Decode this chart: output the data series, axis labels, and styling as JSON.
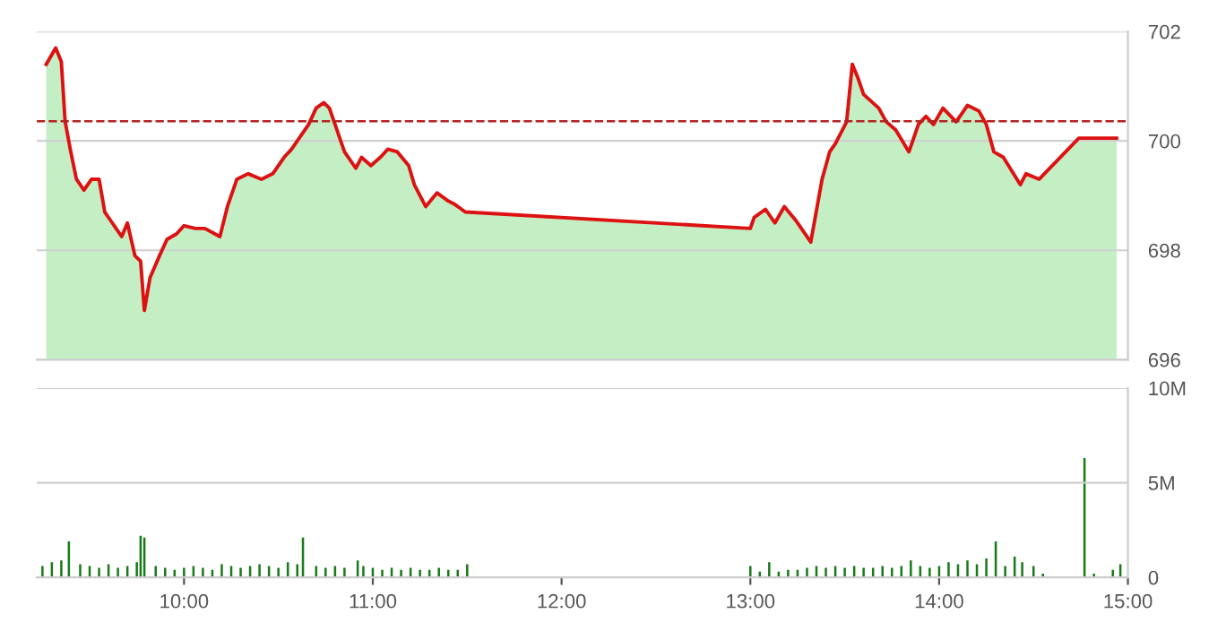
{
  "chart_data": [
    {
      "type": "area",
      "xlim": [
        9.22,
        15.0
      ],
      "ylim": [
        696,
        702
      ],
      "yticks": [
        696,
        698,
        700,
        702
      ],
      "grid": "y",
      "tick_labels": "y",
      "ref_lines": [
        {
          "axis": "y",
          "value": 700.36,
          "color": "#b22222",
          "line_style": "dashed"
        }
      ],
      "series": [
        {
          "color": "#c4eec4",
          "x": [
            9.27,
            9.32,
            9.35,
            9.37,
            9.4,
            9.43,
            9.47,
            9.51,
            9.55,
            9.58,
            9.62,
            9.67,
            9.7,
            9.74,
            9.77,
            9.79,
            9.82,
            9.87,
            9.91,
            9.96,
            10.0,
            10.06,
            10.11,
            10.19,
            10.23,
            10.28,
            10.34,
            10.41,
            10.47,
            10.53,
            10.57,
            10.61,
            10.66,
            10.7,
            10.74,
            10.77,
            10.8,
            10.85,
            10.91,
            10.94,
            10.99,
            11.04,
            11.08,
            11.13,
            11.19,
            11.22,
            11.28,
            11.34,
            11.4,
            11.43,
            11.49,
            13.0,
            13.02,
            13.08,
            13.13,
            13.18,
            13.24,
            13.32,
            13.38,
            13.42,
            13.45,
            13.51,
            13.54,
            13.57,
            13.6,
            13.68,
            13.72,
            13.77,
            13.84,
            13.89,
            13.93,
            13.97,
            14.02,
            14.09,
            14.15,
            14.21,
            14.25,
            14.29,
            14.34,
            14.43,
            14.46,
            14.53,
            14.74,
            14.94
          ],
          "values": [
            701.4,
            701.7,
            701.45,
            700.36,
            699.8,
            699.3,
            699.1,
            699.3,
            699.3,
            698.7,
            698.5,
            698.25,
            698.5,
            697.9,
            697.8,
            696.9,
            697.5,
            697.9,
            698.2,
            698.3,
            698.45,
            698.4,
            698.4,
            698.25,
            698.8,
            699.3,
            699.4,
            699.3,
            699.4,
            699.7,
            699.85,
            700.05,
            700.3,
            700.6,
            700.7,
            700.6,
            700.3,
            699.8,
            699.5,
            699.7,
            699.55,
            699.7,
            699.85,
            699.8,
            699.55,
            699.2,
            698.8,
            699.05,
            698.9,
            698.85,
            698.7,
            698.4,
            698.6,
            698.75,
            698.5,
            698.8,
            698.55,
            698.15,
            699.3,
            699.8,
            699.95,
            700.35,
            701.4,
            701.15,
            700.85,
            700.6,
            700.35,
            700.2,
            699.8,
            700.3,
            700.45,
            700.3,
            700.6,
            700.35,
            700.65,
            700.55,
            700.3,
            699.8,
            699.7,
            699.2,
            699.4,
            699.3,
            700.05,
            700.05
          ]
        },
        {
          "type": "line",
          "color": "#dd1111",
          "x": [
            9.27,
            9.32,
            9.35,
            9.37,
            9.4,
            9.43,
            9.47,
            9.51,
            9.55,
            9.58,
            9.62,
            9.67,
            9.7,
            9.74,
            9.77,
            9.79,
            9.82,
            9.87,
            9.91,
            9.96,
            10.0,
            10.06,
            10.11,
            10.19,
            10.23,
            10.28,
            10.34,
            10.41,
            10.47,
            10.53,
            10.57,
            10.61,
            10.66,
            10.7,
            10.74,
            10.77,
            10.8,
            10.85,
            10.91,
            10.94,
            10.99,
            11.04,
            11.08,
            11.13,
            11.19,
            11.22,
            11.28,
            11.34,
            11.4,
            11.43,
            11.49,
            13.0,
            13.02,
            13.08,
            13.13,
            13.18,
            13.24,
            13.32,
            13.38,
            13.42,
            13.45,
            13.51,
            13.54,
            13.57,
            13.6,
            13.68,
            13.72,
            13.77,
            13.84,
            13.89,
            13.93,
            13.97,
            14.02,
            14.09,
            14.15,
            14.21,
            14.25,
            14.29,
            14.34,
            14.43,
            14.46,
            14.53,
            14.74,
            14.94
          ],
          "values": [
            701.4,
            701.7,
            701.45,
            700.36,
            699.8,
            699.3,
            699.1,
            699.3,
            699.3,
            698.7,
            698.5,
            698.25,
            698.5,
            697.9,
            697.8,
            696.9,
            697.5,
            697.9,
            698.2,
            698.3,
            698.45,
            698.4,
            698.4,
            698.25,
            698.8,
            699.3,
            699.4,
            699.3,
            699.4,
            699.7,
            699.85,
            700.05,
            700.3,
            700.6,
            700.7,
            700.6,
            700.3,
            699.8,
            699.5,
            699.7,
            699.55,
            699.7,
            699.85,
            699.8,
            699.55,
            699.2,
            698.8,
            699.05,
            698.9,
            698.85,
            698.7,
            698.4,
            698.6,
            698.75,
            698.5,
            698.8,
            698.55,
            698.15,
            699.3,
            699.8,
            699.95,
            700.35,
            701.4,
            701.15,
            700.85,
            700.6,
            700.35,
            700.2,
            699.8,
            700.3,
            700.45,
            700.3,
            700.6,
            700.35,
            700.65,
            700.55,
            700.3,
            699.8,
            699.7,
            699.2,
            699.4,
            699.3,
            700.05,
            700.05
          ]
        }
      ]
    },
    {
      "type": "bar",
      "xlim": [
        9.22,
        15.0
      ],
      "ylim": [
        0,
        10
      ],
      "yticks": [
        0,
        {
          "value": 5,
          "label": "5M"
        },
        {
          "value": 10,
          "label": "10M"
        }
      ],
      "xticks": [
        {
          "value": 10,
          "label": "10:00"
        },
        {
          "value": 11,
          "label": "11:00"
        },
        {
          "value": 12,
          "label": "12:00"
        },
        {
          "value": 13,
          "label": "13:00"
        },
        {
          "value": 14,
          "label": "14:00"
        },
        {
          "value": 15,
          "label": "15:00"
        }
      ],
      "grid": "y",
      "series": [
        {
          "color": "#1a7a1a",
          "x": [
            9.25,
            9.3,
            9.35,
            9.39,
            9.45,
            9.5,
            9.55,
            9.6,
            9.65,
            9.7,
            9.75,
            9.77,
            9.79,
            9.85,
            9.9,
            9.95,
            10.0,
            10.05,
            10.1,
            10.15,
            10.2,
            10.25,
            10.3,
            10.35,
            10.4,
            10.45,
            10.5,
            10.55,
            10.6,
            10.63,
            10.7,
            10.75,
            10.8,
            10.85,
            10.92,
            10.95,
            11.0,
            11.05,
            11.1,
            11.15,
            11.2,
            11.25,
            11.3,
            11.35,
            11.4,
            11.45,
            11.5,
            13.0,
            13.05,
            13.1,
            13.15,
            13.2,
            13.25,
            13.3,
            13.35,
            13.4,
            13.45,
            13.5,
            13.55,
            13.6,
            13.65,
            13.7,
            13.75,
            13.8,
            13.85,
            13.9,
            13.95,
            14.0,
            14.05,
            14.1,
            14.15,
            14.2,
            14.25,
            14.3,
            14.35,
            14.4,
            14.44,
            14.5,
            14.55,
            14.77,
            14.82,
            14.92,
            14.96
          ],
          "values": [
            0.6,
            0.8,
            0.9,
            1.9,
            0.7,
            0.6,
            0.5,
            0.7,
            0.5,
            0.6,
            0.8,
            2.2,
            2.1,
            0.6,
            0.5,
            0.4,
            0.5,
            0.6,
            0.5,
            0.4,
            0.7,
            0.6,
            0.5,
            0.6,
            0.7,
            0.6,
            0.5,
            0.8,
            0.7,
            2.1,
            0.6,
            0.5,
            0.6,
            0.5,
            0.9,
            0.6,
            0.5,
            0.4,
            0.5,
            0.4,
            0.5,
            0.4,
            0.4,
            0.5,
            0.4,
            0.4,
            0.7,
            0.6,
            0.3,
            0.8,
            0.3,
            0.4,
            0.4,
            0.5,
            0.6,
            0.5,
            0.6,
            0.5,
            0.6,
            0.5,
            0.5,
            0.6,
            0.5,
            0.6,
            0.9,
            0.6,
            0.5,
            0.6,
            0.8,
            0.7,
            0.9,
            0.7,
            1.0,
            1.9,
            0.6,
            1.1,
            0.8,
            0.6,
            0.2,
            6.3,
            0.2,
            0.4,
            0.7
          ]
        }
      ]
    }
  ]
}
